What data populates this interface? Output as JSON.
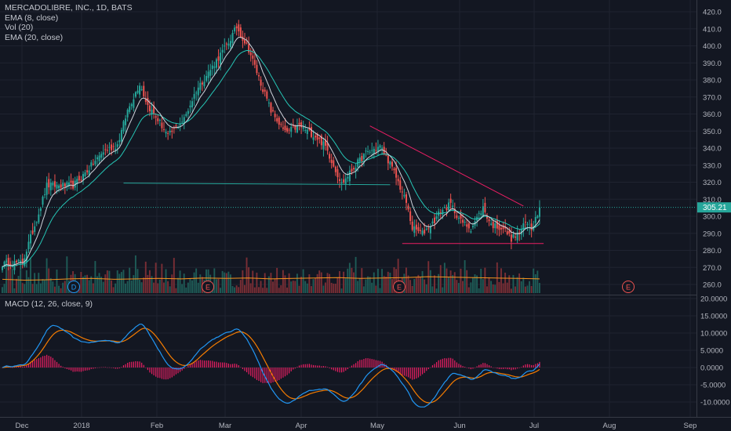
{
  "legend": {
    "symbol_line": "MERCADOLIBRE, INC., 1D, BATS",
    "ema8": "EMA (8, close)",
    "vol": "Vol (20)",
    "ema20": "EMA (20, close)"
  },
  "macd_label": "MACD (12, 26, close, 9)",
  "last_price_label": "305.21",
  "colors": {
    "background": "#131722",
    "up": "#26a69a",
    "down": "#ef5350",
    "ema8": "#d1d4dc",
    "ema20": "#26c6b6",
    "vol_ma": "#f7941d",
    "macd": "#2196f3",
    "signal": "#f57c00",
    "hist": "#e91e63",
    "trend_support": "#26a69a",
    "trend_resist": "#e91e63"
  },
  "chart_data": [
    {
      "type": "candlestick",
      "title": "MERCADOLIBRE, INC., 1D, BATS",
      "x_ticks": [
        "Dec",
        "2018",
        "Feb",
        "Mar",
        "Apr",
        "May",
        "Jun",
        "Jul",
        "Aug",
        "Sep"
      ],
      "y_ticks": [
        420,
        410,
        400,
        390,
        380,
        370,
        360,
        350,
        340,
        330,
        320,
        310,
        300,
        290,
        280,
        270,
        260
      ],
      "ylim": [
        256,
        422
      ],
      "last_price": 305.21,
      "event_markers": [
        "D",
        "E",
        "E",
        "E"
      ],
      "close_anchors": [
        [
          0,
          272
        ],
        [
          10,
          273
        ],
        [
          18,
          302
        ],
        [
          22,
          318
        ],
        [
          35,
          318
        ],
        [
          40,
          324
        ],
        [
          50,
          338
        ],
        [
          57,
          342
        ],
        [
          62,
          362
        ],
        [
          68,
          378
        ],
        [
          72,
          365
        ],
        [
          78,
          355
        ],
        [
          82,
          347
        ],
        [
          90,
          357
        ],
        [
          96,
          374
        ],
        [
          103,
          386
        ],
        [
          112,
          402
        ],
        [
          116,
          411
        ],
        [
          122,
          398
        ],
        [
          128,
          378
        ],
        [
          133,
          362
        ],
        [
          140,
          349
        ],
        [
          147,
          353
        ],
        [
          155,
          347
        ],
        [
          160,
          341
        ],
        [
          164,
          330
        ],
        [
          168,
          319
        ],
        [
          175,
          330
        ],
        [
          180,
          337
        ],
        [
          187,
          341
        ],
        [
          191,
          333
        ],
        [
          195,
          323
        ],
        [
          200,
          308
        ],
        [
          203,
          293
        ],
        [
          208,
          290
        ],
        [
          213,
          296
        ],
        [
          217,
          303
        ],
        [
          222,
          307
        ],
        [
          227,
          297
        ],
        [
          232,
          293
        ],
        [
          238,
          305
        ],
        [
          242,
          295
        ],
        [
          248,
          293
        ],
        [
          252,
          287
        ],
        [
          256,
          290
        ],
        [
          259,
          296
        ],
        [
          262,
          293
        ],
        [
          266,
          305
        ]
      ],
      "volume": {
        "name": "Vol (20)",
        "max": 10,
        "ma": [
          3.2,
          3.0,
          3.1,
          3.3,
          3.4,
          3.2,
          3.3,
          3.4,
          3.3,
          3.5,
          3.4,
          3.5,
          3.3,
          3.4,
          3.5,
          3.6,
          3.4,
          3.5,
          3.6,
          3.8,
          3.7,
          3.6,
          3.5,
          3.4,
          3.3
        ]
      },
      "series": [
        {
          "name": "EMA (8, close)",
          "period": 8
        },
        {
          "name": "EMA (20, close)",
          "period": 20
        }
      ],
      "trendlines": [
        {
          "kind": "support",
          "points": [
            [
              60,
              319.5
            ],
            [
              192,
              318.5
            ]
          ]
        },
        {
          "kind": "resistance",
          "points": [
            [
              182,
              353
            ],
            [
              258,
              306
            ]
          ]
        },
        {
          "kind": "support-bottom",
          "points": [
            [
              198,
              284
            ],
            [
              268,
              284
            ]
          ]
        }
      ]
    },
    {
      "type": "line",
      "title": "MACD (12, 26, close, 9)",
      "y_ticks": [
        20,
        15,
        10,
        5,
        0,
        -5,
        -10
      ],
      "y_tick_labels": [
        "20.0000",
        "15.0000",
        "10.0000",
        "5.0000",
        "0.0000",
        "-5.0000",
        "-10.0000"
      ],
      "ylim": [
        -12.5,
        21
      ],
      "series": [
        {
          "name": "MACD",
          "values_from": "EMA12 - EMA26 of closes"
        },
        {
          "name": "Signal",
          "period": 9
        },
        {
          "name": "Histogram"
        }
      ]
    }
  ]
}
